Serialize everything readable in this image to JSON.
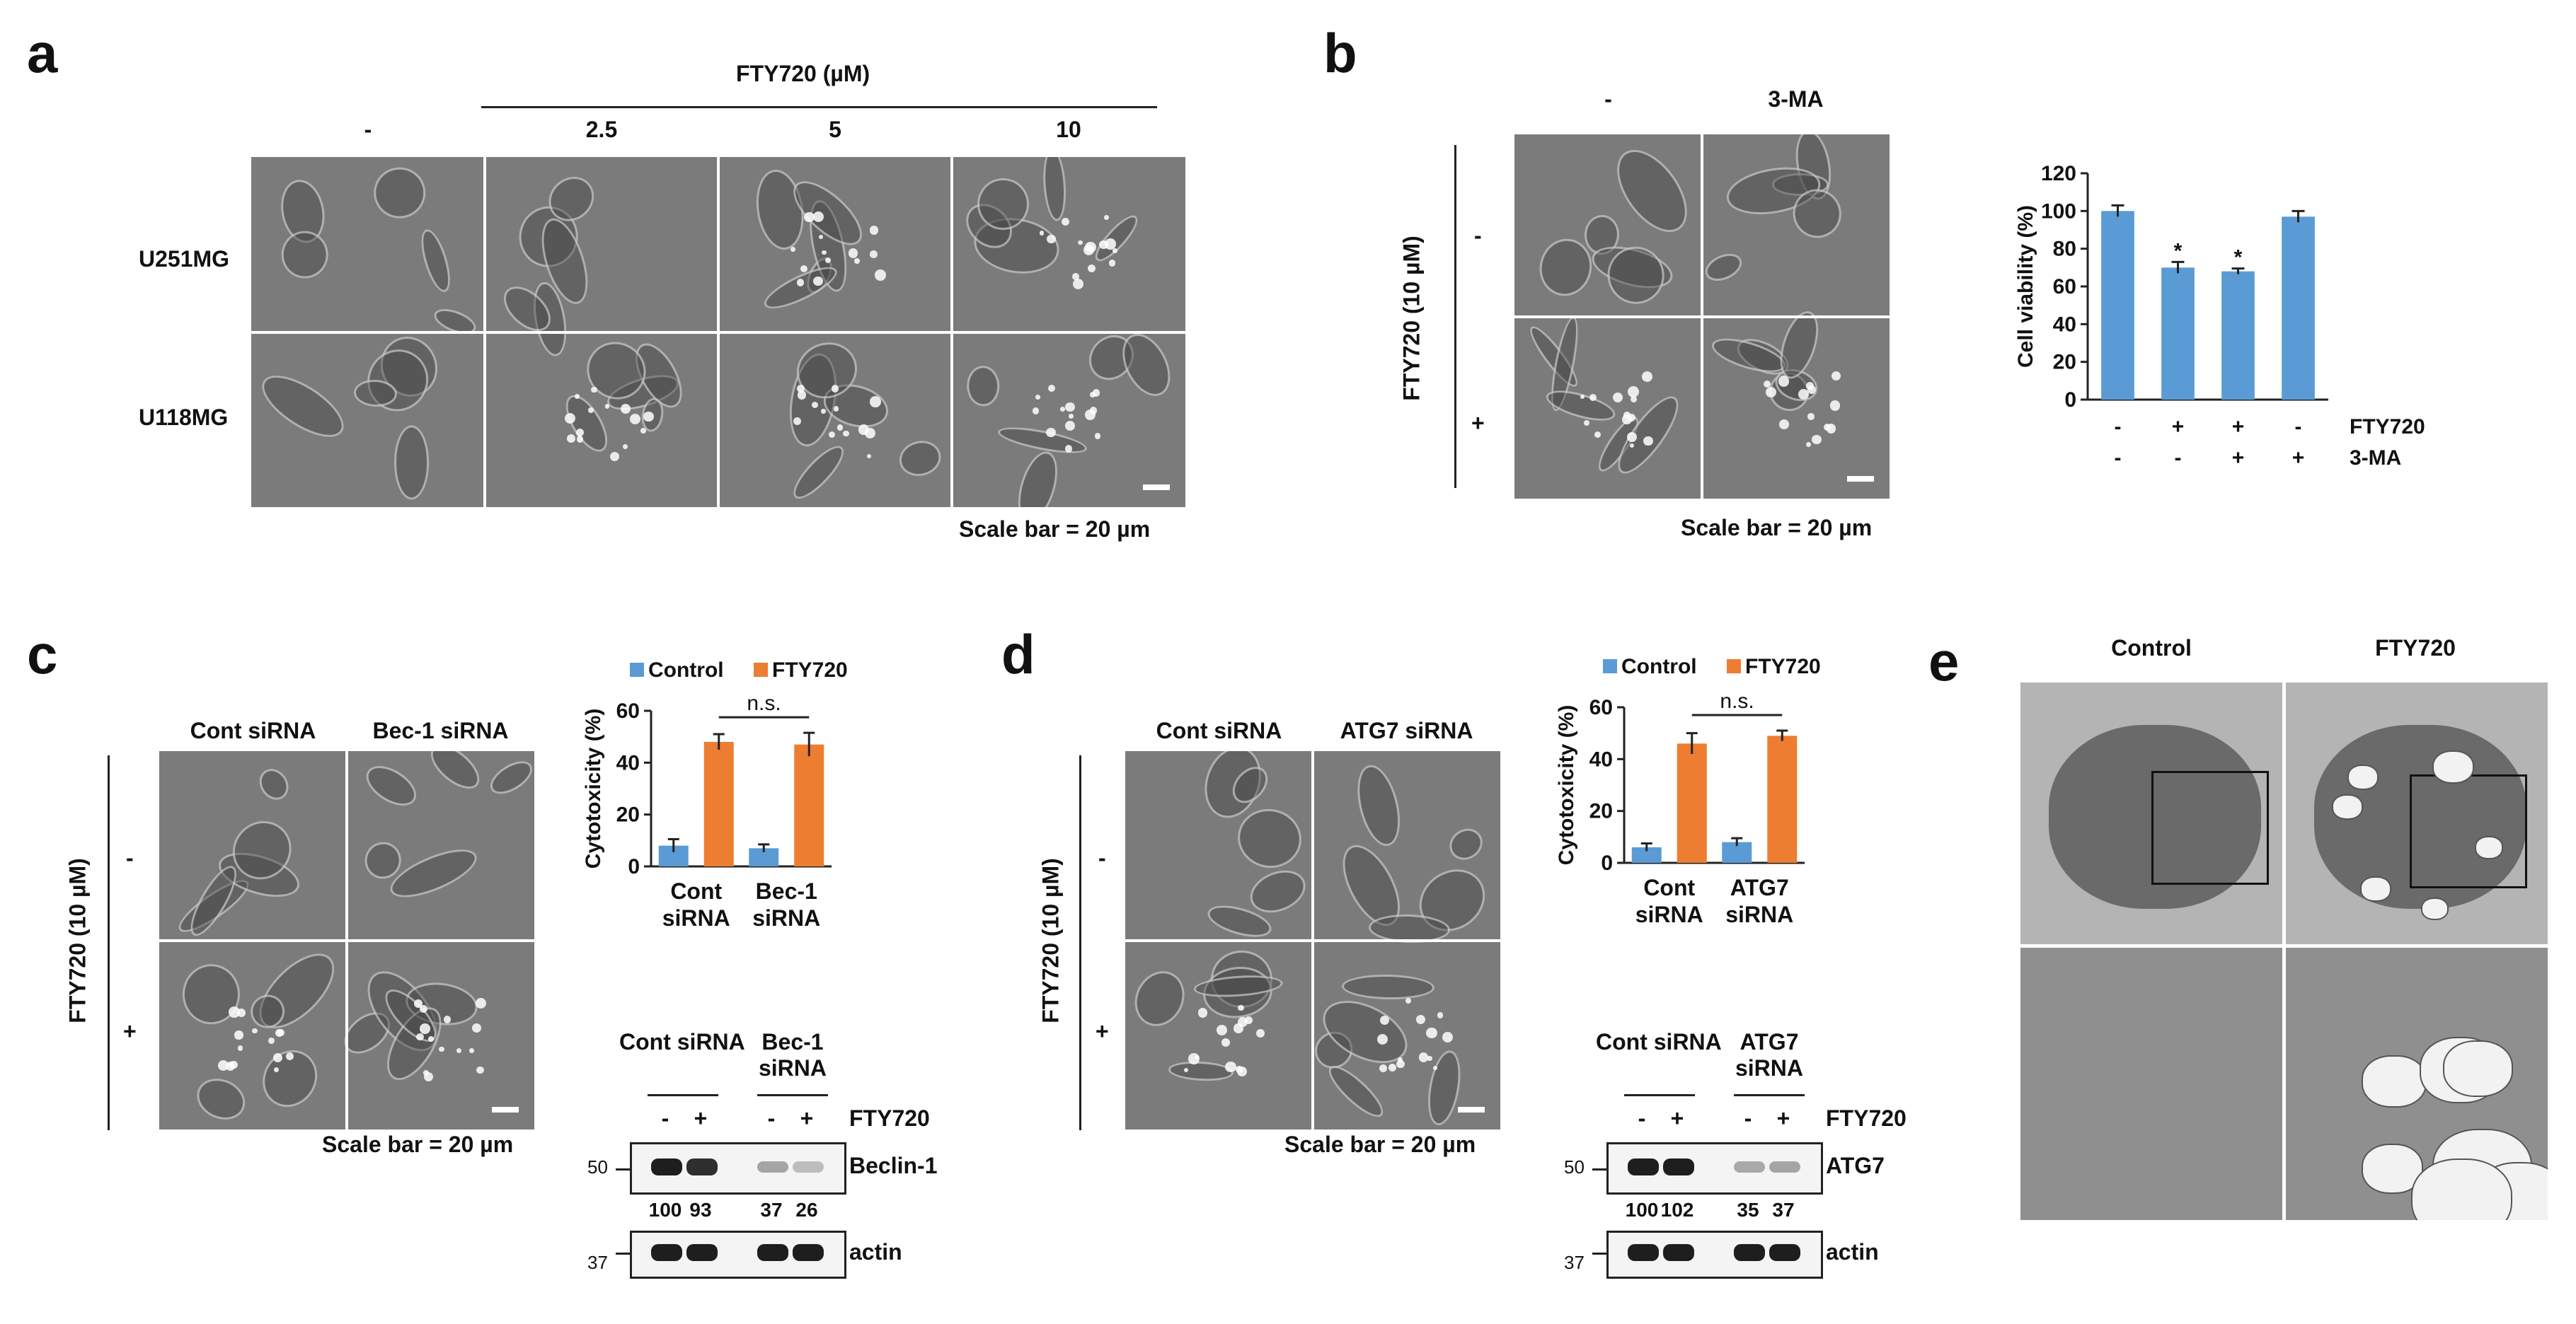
{
  "panel_a": {
    "letter": "a",
    "drug_header": "FTY720 (µM)",
    "conc": [
      "-",
      "2.5",
      "5",
      "10"
    ],
    "rows": [
      "U251MG",
      "U118MG"
    ],
    "scale": "Scale bar = 20 µm"
  },
  "panel_b": {
    "letter": "b",
    "cols": [
      "-",
      "3-MA"
    ],
    "side": "FTY720 (10 µM)",
    "side_signs": [
      "-",
      "+"
    ],
    "scale": "Scale bar = 20 µm"
  },
  "panel_c": {
    "letter": "c",
    "cols": [
      "Cont siRNA",
      "Bec-1 siRNA"
    ],
    "side": "FTY720 (10 µM)",
    "side_signs": [
      "-",
      "+"
    ],
    "scale": "Scale bar = 20 µm",
    "blot": {
      "groups": [
        "Cont siRNA",
        "Bec-1 siRNA"
      ],
      "signs": [
        "-",
        "+",
        "-",
        "+"
      ],
      "treat": "FTY720",
      "target": "Beclin-1",
      "loading": "actin",
      "mw_top": "50",
      "mw_bottom": "37",
      "quant": [
        "100",
        "93",
        "37",
        "26"
      ],
      "target_intensity": [
        1.0,
        0.93,
        0.37,
        0.26
      ]
    }
  },
  "panel_d": {
    "letter": "d",
    "cols": [
      "Cont siRNA",
      "ATG7 siRNA"
    ],
    "side": "FTY720 (10 µM)",
    "side_signs": [
      "-",
      "+"
    ],
    "scale": "Scale bar = 20 µm",
    "blot": {
      "groups": [
        "Cont siRNA",
        "ATG7 siRNA"
      ],
      "signs": [
        "-",
        "+",
        "-",
        "+"
      ],
      "treat": "FTY720",
      "target": "ATG7",
      "loading": "actin",
      "mw_top": "50",
      "mw_bottom": "37",
      "quant": [
        "100",
        "102",
        "35",
        "37"
      ],
      "target_intensity": [
        1.0,
        1.0,
        0.35,
        0.37
      ]
    }
  },
  "panel_e": {
    "letter": "e",
    "cols": [
      "Control",
      "FTY720"
    ]
  },
  "chart_data": [
    {
      "type": "bar",
      "panel": "b",
      "ylabel": "Cell viability (%)",
      "ylim": [
        0,
        120
      ],
      "yticks": [
        0,
        20,
        40,
        60,
        80,
        100,
        120
      ],
      "values": [
        100,
        70,
        68,
        97
      ],
      "errors": [
        3,
        3,
        1.5,
        3
      ],
      "significance": [
        "",
        "*",
        "*",
        ""
      ],
      "row_labels": [
        "FTY720",
        "3-MA"
      ],
      "conditions": [
        [
          "-",
          "+",
          "+",
          "-"
        ],
        [
          "-",
          "-",
          "+",
          "+"
        ]
      ],
      "color": "#5b9bd5"
    },
    {
      "type": "bar",
      "panel": "c",
      "ylabel": "Cytotoxicity (%)",
      "ylim": [
        0,
        60
      ],
      "yticks": [
        0,
        20,
        40,
        60
      ],
      "categories": [
        [
          "Cont",
          "siRNA"
        ],
        [
          "Bec-1",
          "siRNA"
        ]
      ],
      "series": [
        {
          "name": "Control",
          "color": "#5b9bd5",
          "values": [
            8,
            7
          ],
          "errors": [
            2.5,
            1.5
          ]
        },
        {
          "name": "FTY720",
          "color": "#ed7d31",
          "values": [
            48,
            47
          ],
          "errors": [
            3,
            4.5
          ]
        }
      ],
      "annotation": "n.s."
    },
    {
      "type": "bar",
      "panel": "d",
      "ylabel": "Cytotoxicity (%)",
      "ylim": [
        0,
        60
      ],
      "yticks": [
        0,
        20,
        40,
        60
      ],
      "categories": [
        [
          "Cont",
          "siRNA"
        ],
        [
          "ATG7",
          "siRNA"
        ]
      ],
      "series": [
        {
          "name": "Control",
          "color": "#5b9bd5",
          "values": [
            6,
            8
          ],
          "errors": [
            1.5,
            1.5
          ]
        },
        {
          "name": "FTY720",
          "color": "#ed7d31",
          "values": [
            46,
            49
          ],
          "errors": [
            4,
            2
          ]
        }
      ],
      "annotation": "n.s."
    }
  ]
}
